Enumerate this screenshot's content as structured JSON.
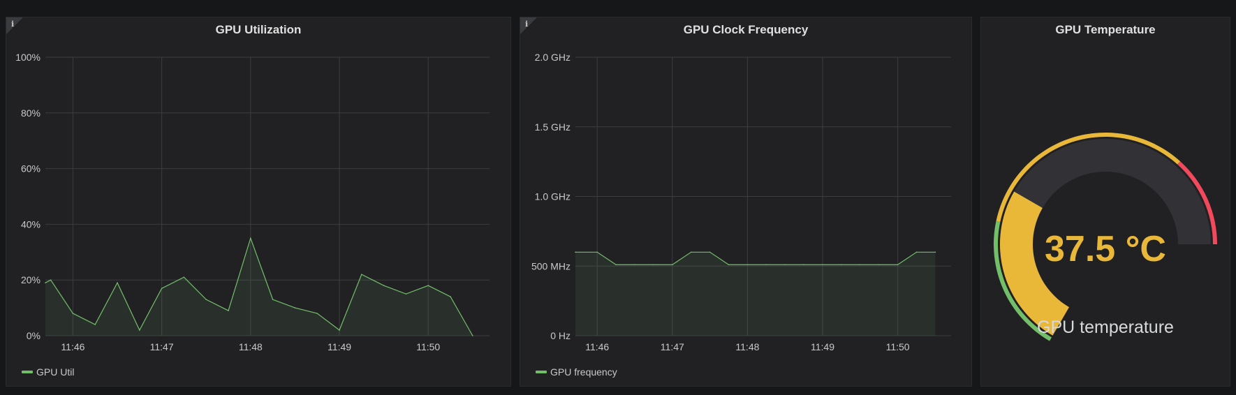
{
  "panels": {
    "util": {
      "title": "GPU Utilization",
      "legend": "GPU Util"
    },
    "freq": {
      "title": "GPU Clock Frequency",
      "legend": "GPU frequency"
    },
    "temp": {
      "title": "GPU Temperature",
      "value_text": "37.5 °C",
      "label": "GPU temperature"
    }
  },
  "info_glyph": "i",
  "colors": {
    "series": "#73bf69",
    "gauge_value": "#eab839",
    "gauge_track": "#323236",
    "threshold_green": "#73bf69",
    "threshold_yellow": "#eab839",
    "threshold_red": "#f2495c"
  },
  "chart_data": [
    {
      "type": "area",
      "title": "GPU Utilization",
      "xlabel": "",
      "ylabel": "",
      "x_ticks": [
        "11:46",
        "11:47",
        "11:48",
        "11:49",
        "11:50"
      ],
      "y_ticks": [
        "0%",
        "20%",
        "40%",
        "60%",
        "80%",
        "100%"
      ],
      "ylim": [
        0,
        100
      ],
      "xlim_minutes": [
        45.69,
        50.69
      ],
      "series": [
        {
          "name": "GPU Util",
          "x_minutes": [
            45.69,
            45.75,
            46.0,
            46.25,
            46.5,
            46.75,
            47.0,
            47.25,
            47.5,
            47.75,
            48.0,
            48.25,
            48.5,
            48.75,
            49.0,
            49.25,
            49.5,
            49.75,
            50.0,
            50.25,
            50.5
          ],
          "values": [
            19,
            20,
            8,
            4,
            19,
            2,
            17,
            21,
            13,
            9,
            35,
            13,
            10,
            8,
            2,
            22,
            18,
            15,
            18,
            14,
            0
          ]
        }
      ],
      "grid": true,
      "legend": "bottom-left"
    },
    {
      "type": "area",
      "title": "GPU Clock Frequency",
      "xlabel": "",
      "ylabel": "",
      "x_ticks": [
        "11:46",
        "11:47",
        "11:48",
        "11:49",
        "11:50"
      ],
      "y_ticks": [
        "0 Hz",
        "500 MHz",
        "1.0 GHz",
        "1.5 GHz",
        "2.0 GHz"
      ],
      "ylim_mhz": [
        0,
        2000
      ],
      "xlim_minutes": [
        45.71,
        50.71
      ],
      "series": [
        {
          "name": "GPU frequency",
          "x_minutes": [
            45.71,
            46.0,
            46.25,
            46.5,
            46.75,
            47.0,
            47.25,
            47.5,
            47.75,
            48.0,
            48.25,
            48.5,
            48.75,
            49.0,
            49.25,
            49.5,
            49.75,
            50.0,
            50.25,
            50.5
          ],
          "values_mhz": [
            600,
            600,
            510,
            510,
            510,
            510,
            600,
            600,
            510,
            510,
            510,
            510,
            510,
            510,
            510,
            510,
            510,
            510,
            600,
            600
          ]
        }
      ],
      "grid": true,
      "legend": "bottom-left"
    },
    {
      "type": "gauge",
      "title": "GPU Temperature",
      "value": 37.5,
      "unit": "°C",
      "min": 0,
      "max": 100,
      "thresholds": [
        {
          "from": 0,
          "to": 30,
          "color": "green"
        },
        {
          "from": 30,
          "to": 80,
          "color": "yellow"
        },
        {
          "from": 80,
          "to": 100,
          "color": "red"
        }
      ]
    }
  ]
}
